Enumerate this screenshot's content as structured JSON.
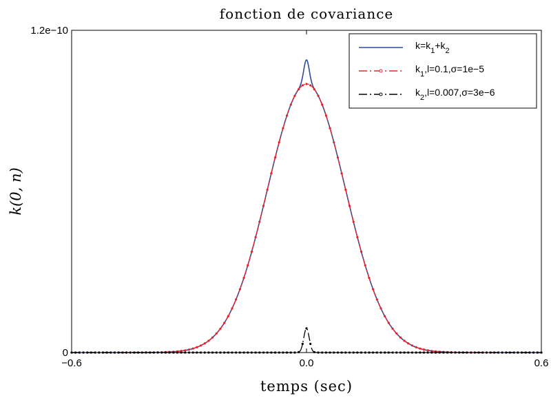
{
  "chart_data": {
    "type": "line",
    "title": "fonction de covariance",
    "xlabel": "temps (sec)",
    "ylabel": "k(0, n)",
    "xlim": [
      -0.6,
      0.6
    ],
    "ylim": [
      0,
      1.2e-10
    ],
    "x_ticks": [
      {
        "value": -0.6,
        "label": "−0.6"
      },
      {
        "value": 0.0,
        "label": "0.0"
      },
      {
        "value": 0.6,
        "label": "0.6"
      }
    ],
    "y_ticks": [
      {
        "value": 0,
        "label": "0"
      },
      {
        "value": 1.2e-10,
        "label": "1.2e−10"
      }
    ],
    "grid": false,
    "legend_position": "top-right",
    "series": [
      {
        "name": "k=k1+k2",
        "legend": {
          "main": "k=k",
          "s1": "1",
          "mid": "+k",
          "s2": "2",
          "tail": ""
        },
        "color": "#2b4c9a",
        "style": "solid",
        "marker": "none",
        "kernel": {
          "sigma": [
            1e-05,
            3e-06
          ],
          "l": [
            0.1,
            0.007
          ]
        }
      },
      {
        "name": "k1,l=0.1,σ=1e−5",
        "legend": {
          "main": "k",
          "s1": "1",
          "mid": "",
          "s2": "",
          "tail": ",l=0.1,σ=1e−5"
        },
        "color": "#e8202a",
        "style": "dashdot",
        "marker": "dot",
        "kernel": {
          "sigma": [
            1e-05
          ],
          "l": [
            0.1
          ]
        }
      },
      {
        "name": "k2,l=0.007,σ=3e−6",
        "legend": {
          "main": "k",
          "s1": "2",
          "mid": "",
          "s2": "",
          "tail": ",l=0.007,σ=3e−6"
        },
        "color": "#000000",
        "style": "dashdot",
        "marker": "dot",
        "kernel": {
          "sigma": [
            3e-06
          ],
          "l": [
            0.007
          ]
        }
      }
    ]
  }
}
